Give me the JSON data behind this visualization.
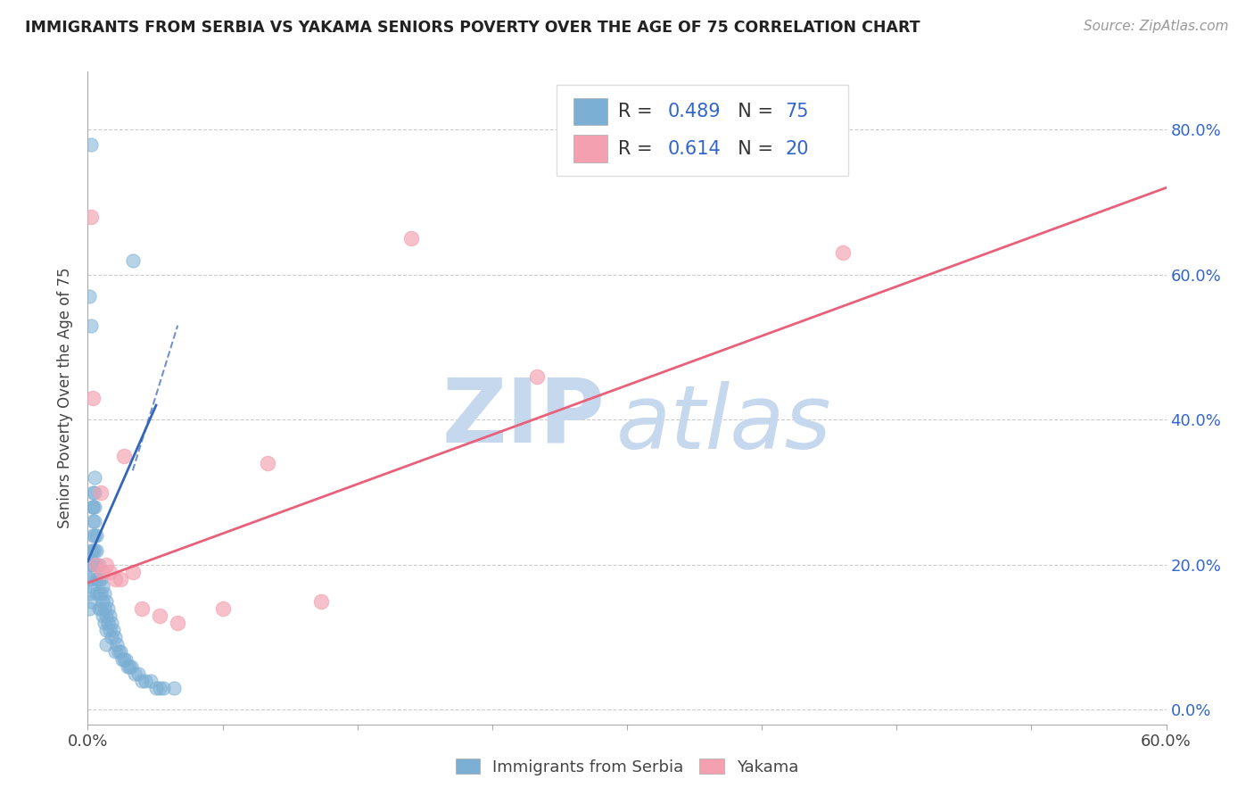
{
  "title": "IMMIGRANTS FROM SERBIA VS YAKAMA SENIORS POVERTY OVER THE AGE OF 75 CORRELATION CHART",
  "source": "Source: ZipAtlas.com",
  "ylabel": "Seniors Poverty Over the Age of 75",
  "xlim": [
    0.0,
    0.6
  ],
  "ylim": [
    -0.02,
    0.88
  ],
  "serbia_R": 0.489,
  "serbia_N": 75,
  "yakama_R": 0.614,
  "yakama_N": 20,
  "serbia_color": "#7BAFD4",
  "yakama_color": "#F4A0B0",
  "serbia_line_color": "#3366BB",
  "yakama_line_color": "#E8607A",
  "watermark_zip": "ZIP",
  "watermark_atlas": "atlas",
  "watermark_color": "#C5D8EE",
  "serbia_x": [
    0.002,
    0.025,
    0.001,
    0.002,
    0.003,
    0.003,
    0.004,
    0.004,
    0.004,
    0.005,
    0.001,
    0.001,
    0.001,
    0.001,
    0.002,
    0.002,
    0.002,
    0.002,
    0.002,
    0.003,
    0.003,
    0.003,
    0.003,
    0.003,
    0.004,
    0.004,
    0.004,
    0.005,
    0.005,
    0.005,
    0.005,
    0.006,
    0.006,
    0.006,
    0.006,
    0.007,
    0.007,
    0.007,
    0.008,
    0.008,
    0.008,
    0.009,
    0.009,
    0.009,
    0.01,
    0.01,
    0.01,
    0.01,
    0.011,
    0.011,
    0.012,
    0.012,
    0.013,
    0.013,
    0.014,
    0.015,
    0.015,
    0.016,
    0.017,
    0.018,
    0.019,
    0.02,
    0.021,
    0.022,
    0.023,
    0.024,
    0.026,
    0.028,
    0.03,
    0.032,
    0.035,
    0.038,
    0.04,
    0.042,
    0.048
  ],
  "serbia_y": [
    0.78,
    0.62,
    0.57,
    0.53,
    0.3,
    0.28,
    0.32,
    0.3,
    0.28,
    0.24,
    0.2,
    0.18,
    0.16,
    0.14,
    0.22,
    0.2,
    0.18,
    0.17,
    0.15,
    0.28,
    0.26,
    0.24,
    0.22,
    0.2,
    0.26,
    0.24,
    0.22,
    0.22,
    0.2,
    0.18,
    0.16,
    0.2,
    0.18,
    0.16,
    0.14,
    0.18,
    0.16,
    0.14,
    0.17,
    0.15,
    0.13,
    0.16,
    0.14,
    0.12,
    0.15,
    0.13,
    0.11,
    0.09,
    0.14,
    0.12,
    0.13,
    0.11,
    0.12,
    0.1,
    0.11,
    0.1,
    0.08,
    0.09,
    0.08,
    0.08,
    0.07,
    0.07,
    0.07,
    0.06,
    0.06,
    0.06,
    0.05,
    0.05,
    0.04,
    0.04,
    0.04,
    0.03,
    0.03,
    0.03,
    0.03
  ],
  "yakama_x": [
    0.002,
    0.003,
    0.005,
    0.007,
    0.008,
    0.01,
    0.012,
    0.015,
    0.018,
    0.02,
    0.025,
    0.03,
    0.04,
    0.05,
    0.075,
    0.1,
    0.13,
    0.18,
    0.25,
    0.42
  ],
  "yakama_y": [
    0.68,
    0.43,
    0.2,
    0.3,
    0.19,
    0.2,
    0.19,
    0.18,
    0.18,
    0.35,
    0.19,
    0.14,
    0.13,
    0.12,
    0.14,
    0.34,
    0.15,
    0.65,
    0.46,
    0.63
  ],
  "serbia_trendline_x": [
    0.0,
    0.045
  ],
  "serbia_trendline_y": [
    0.205,
    0.42
  ],
  "yakama_trendline_x": [
    0.0,
    0.6
  ],
  "yakama_trendline_y": [
    0.175,
    0.72
  ]
}
